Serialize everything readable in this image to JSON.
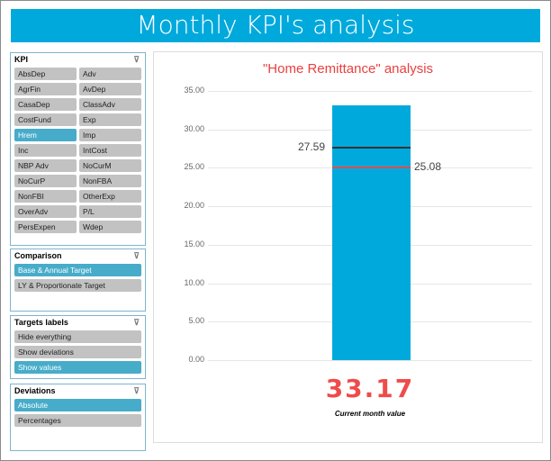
{
  "header": {
    "title": "Monthly KPI's analysis"
  },
  "slicers": [
    {
      "title": "KPI",
      "layout": "half",
      "selected": "Hrem",
      "items": [
        "AbsDep",
        "Adv",
        "AgrFin",
        "AvDep",
        "CasaDep",
        "ClassAdv",
        "CostFund",
        "Exp",
        "Hrem",
        "Imp",
        "Inc",
        "IntCost",
        "NBP Adv",
        "NoCurM",
        "NoCurP",
        "NonFBA",
        "NonFBI",
        "OtherExp",
        "OverAdv",
        "P/L",
        "PersExpen",
        "Wdep"
      ]
    },
    {
      "title": "Comparison",
      "layout": "full",
      "selected": "Base & Annual Target",
      "items": [
        "Base & Annual Target",
        "LY & Proportionate Target"
      ]
    },
    {
      "title": "Targets labels",
      "layout": "full",
      "selected": "Show values",
      "items": [
        "Hide everything",
        "Show deviations",
        "Show values"
      ]
    },
    {
      "title": "Deviations",
      "layout": "full",
      "selected": "Absolute",
      "items": [
        "Absolute",
        "Percentages"
      ]
    }
  ],
  "chart_data": {
    "type": "bar",
    "title": "\"Home Remittance\" analysis",
    "ylim": [
      0,
      35
    ],
    "yticks": [
      "0.00",
      "5.00",
      "10.00",
      "15.00",
      "20.00",
      "25.00",
      "30.00",
      "35.00"
    ],
    "value": 33.17,
    "targets": [
      {
        "value": 27.59,
        "label": "27.59",
        "color": "#333333"
      },
      {
        "value": 25.08,
        "label": "25.08",
        "color": "#ef4b4b"
      }
    ],
    "bar_color": "#00a9dc",
    "value_label": "33.17",
    "caption": "Current month value"
  }
}
